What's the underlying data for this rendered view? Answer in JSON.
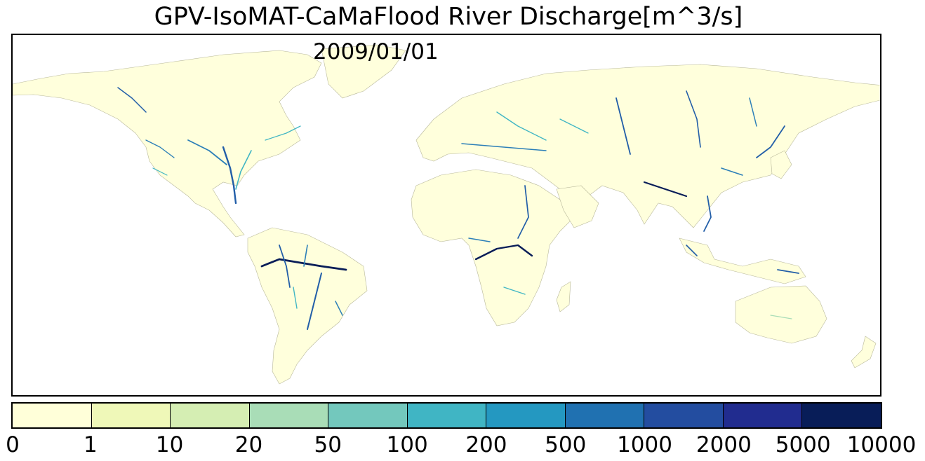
{
  "title": "GPV-IsoMAT-CaMaFlood River Discharge[m^3/s]",
  "date": "2009/01/01",
  "colors": {
    "land": "#ffffdc",
    "border": "#9a9a7a",
    "low": "#d6efb3",
    "mid": "#41b6c4",
    "high": "#225ea8",
    "max": "#081d58"
  },
  "colorbar": {
    "ticks": [
      "0",
      "1",
      "10",
      "20",
      "50",
      "100",
      "200",
      "500",
      "1000",
      "2000",
      "5000",
      "10000"
    ],
    "colors": [
      "#ffffd9",
      "#eff8b8",
      "#d5eeb3",
      "#a9ddb7",
      "#73c8bd",
      "#40b5c4",
      "#2498c1",
      "#2071b1",
      "#234da0",
      "#212c8f",
      "#081d58"
    ]
  }
}
